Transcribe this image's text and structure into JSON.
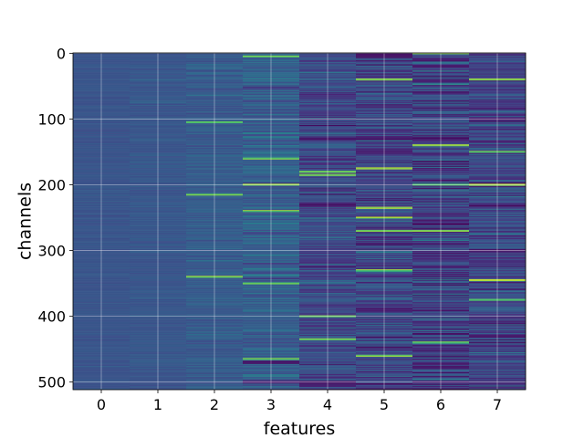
{
  "chart_data": {
    "type": "heatmap",
    "title": "",
    "xlabel": "features",
    "ylabel": "channels",
    "x_categories": [
      "0",
      "1",
      "2",
      "3",
      "4",
      "5",
      "6",
      "7"
    ],
    "y_ticks": [
      0,
      100,
      200,
      300,
      400,
      500
    ],
    "y_tick_labels": [
      "0",
      "100",
      "200",
      "300",
      "400",
      "500"
    ],
    "y_range": [
      0,
      511
    ],
    "n_rows": 512,
    "n_cols": 8,
    "colormap": "viridis",
    "grid": true,
    "column_profile": [
      {
        "feature": "0",
        "base": 0.33,
        "spread": 0.03,
        "bright": [],
        "dark": []
      },
      {
        "feature": "1",
        "base": 0.34,
        "spread": 0.04,
        "bright": [],
        "dark": []
      },
      {
        "feature": "2",
        "base": 0.36,
        "spread": 0.07,
        "bright": [
          105,
          215,
          340
        ],
        "dark": []
      },
      {
        "feature": "3",
        "base": 0.38,
        "spread": 0.12,
        "bright": [
          5,
          160,
          200,
          240,
          350,
          465
        ],
        "dark": [
          470,
          500
        ]
      },
      {
        "feature": "4",
        "base": 0.28,
        "spread": 0.16,
        "bright": [
          180,
          185,
          400,
          435
        ],
        "dark": [
          130,
          230,
          500,
          505
        ]
      },
      {
        "feature": "5",
        "base": 0.26,
        "spread": 0.18,
        "bright": [
          40,
          175,
          235,
          250,
          270,
          330,
          460
        ],
        "dark": [
          0,
          5,
          130,
          150,
          390
        ]
      },
      {
        "feature": "6",
        "base": 0.24,
        "spread": 0.2,
        "bright": [
          0,
          140,
          200,
          270,
          440
        ],
        "dark": [
          10,
          20,
          60,
          500
        ]
      },
      {
        "feature": "7",
        "base": 0.26,
        "spread": 0.17,
        "bright": [
          40,
          150,
          200,
          345,
          375
        ],
        "dark": [
          100,
          300,
          430
        ]
      }
    ]
  }
}
